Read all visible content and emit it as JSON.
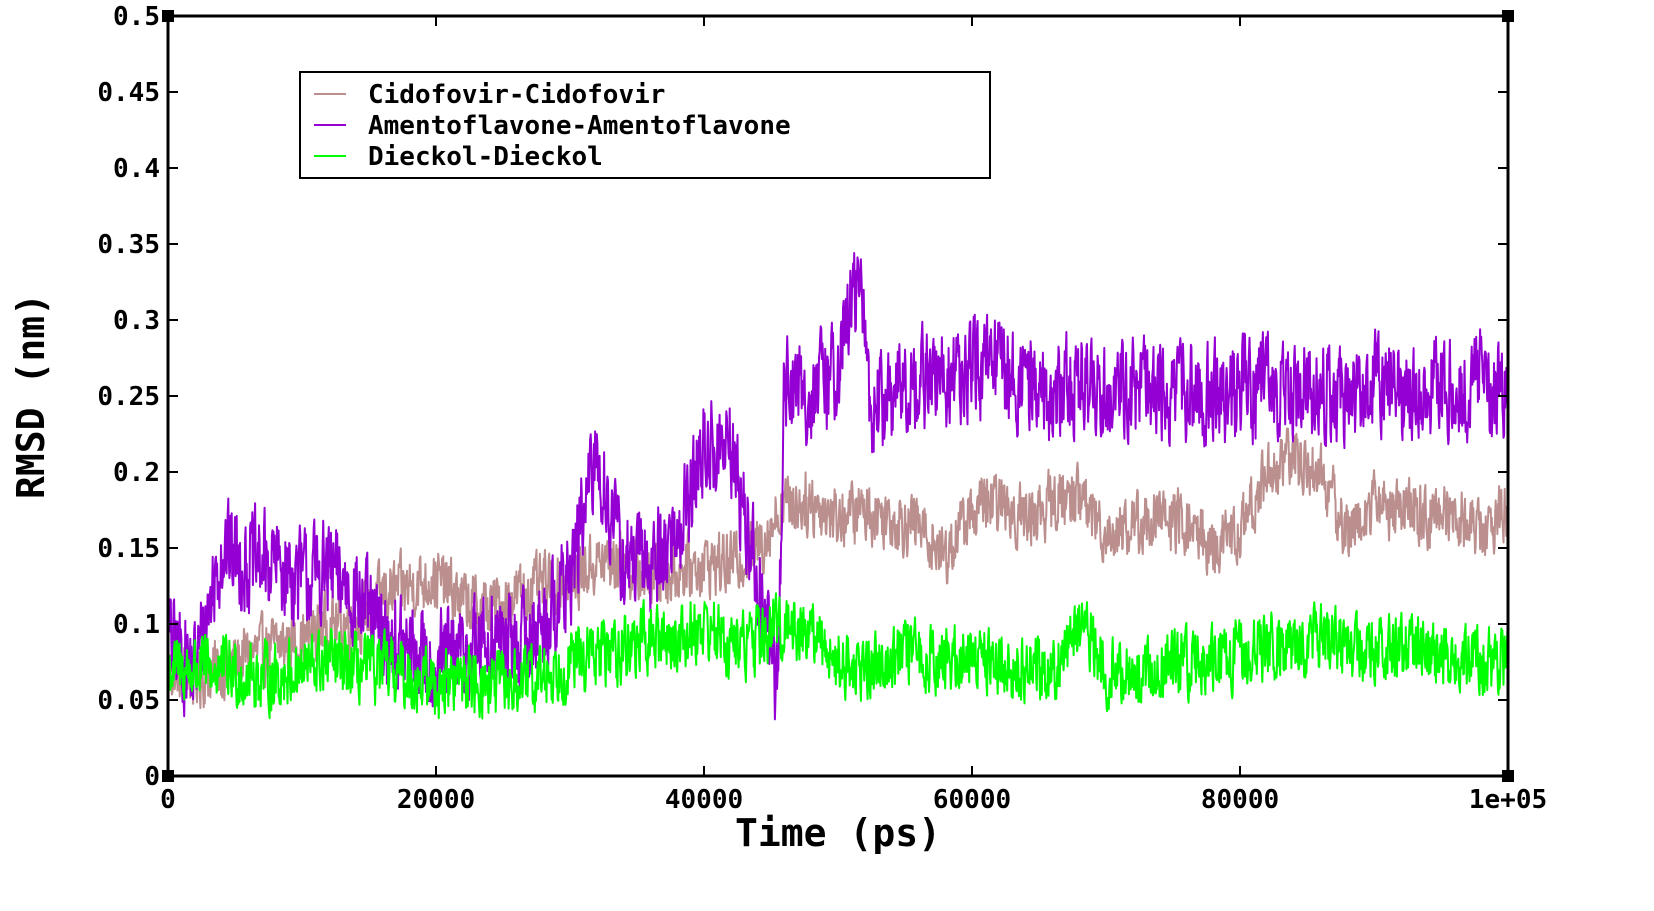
{
  "chart_data": {
    "type": "line",
    "xlabel": "Time (ps)",
    "ylabel": "RMSD (nm)",
    "xlim": [
      0,
      100000
    ],
    "ylim": [
      0,
      0.5
    ],
    "x_ticks": [
      0,
      20000,
      40000,
      60000,
      80000,
      100000
    ],
    "x_tick_labels": [
      "0",
      "20000",
      "40000",
      "60000",
      "80000",
      "1e+05"
    ],
    "y_ticks": [
      0,
      0.05,
      0.1,
      0.15,
      0.2,
      0.25,
      0.3,
      0.35,
      0.4,
      0.45,
      0.5
    ],
    "y_tick_labels": [
      "0",
      "0.05",
      "0.1",
      "0.15",
      "0.2",
      "0.25",
      "0.3",
      "0.35",
      "0.4",
      "0.45",
      "0.5"
    ],
    "grid": false,
    "legend_position": "top-left",
    "series": [
      {
        "name": "Cidofovir-Cidofovir",
        "color": "#bc8f8f",
        "x": [
          0,
          2000,
          4000,
          6000,
          8000,
          10000,
          12000,
          14000,
          16000,
          18000,
          20000,
          22000,
          24000,
          26000,
          28000,
          30000,
          32000,
          34000,
          36000,
          38000,
          40000,
          42000,
          44000,
          46000,
          48000,
          50000,
          52000,
          54000,
          56000,
          58000,
          60000,
          62000,
          64000,
          66000,
          68000,
          70000,
          72000,
          74000,
          76000,
          78000,
          80000,
          82000,
          84000,
          86000,
          88000,
          90000,
          92000,
          94000,
          96000,
          98000,
          100000
        ],
        "y": [
          0.07,
          0.065,
          0.07,
          0.08,
          0.085,
          0.09,
          0.1,
          0.1,
          0.12,
          0.125,
          0.13,
          0.115,
          0.11,
          0.12,
          0.125,
          0.13,
          0.14,
          0.14,
          0.13,
          0.135,
          0.14,
          0.14,
          0.15,
          0.18,
          0.18,
          0.17,
          0.175,
          0.17,
          0.165,
          0.145,
          0.175,
          0.18,
          0.17,
          0.18,
          0.185,
          0.16,
          0.165,
          0.17,
          0.165,
          0.15,
          0.16,
          0.2,
          0.21,
          0.2,
          0.16,
          0.18,
          0.175,
          0.17,
          0.175,
          0.16,
          0.175
        ]
      },
      {
        "name": "Amentoflavone-Amentoflavone",
        "color": "#9400d3",
        "x": [
          0,
          2000,
          4000,
          6000,
          8000,
          10000,
          12000,
          14000,
          16000,
          18000,
          20000,
          22000,
          24000,
          26000,
          28000,
          30000,
          32000,
          34000,
          36000,
          38000,
          40000,
          42000,
          44000,
          45500,
          46000,
          48000,
          50000,
          51500,
          52500,
          54000,
          56000,
          58000,
          60000,
          62000,
          64000,
          66000,
          68000,
          70000,
          72000,
          74000,
          76000,
          78000,
          80000,
          82000,
          84000,
          86000,
          88000,
          90000,
          92000,
          94000,
          96000,
          98000,
          100000
        ],
        "y": [
          0.09,
          0.07,
          0.15,
          0.14,
          0.14,
          0.13,
          0.135,
          0.12,
          0.09,
          0.08,
          0.075,
          0.08,
          0.09,
          0.085,
          0.1,
          0.13,
          0.21,
          0.14,
          0.14,
          0.16,
          0.215,
          0.215,
          0.13,
          0.06,
          0.26,
          0.25,
          0.27,
          0.33,
          0.24,
          0.25,
          0.26,
          0.26,
          0.265,
          0.27,
          0.26,
          0.25,
          0.26,
          0.255,
          0.255,
          0.25,
          0.255,
          0.25,
          0.255,
          0.255,
          0.25,
          0.255,
          0.25,
          0.26,
          0.25,
          0.255,
          0.255,
          0.26,
          0.25
        ]
      },
      {
        "name": "Dieckol-Dieckol",
        "color": "#00ff00",
        "x": [
          0,
          2000,
          4000,
          6000,
          8000,
          10000,
          12000,
          14000,
          16000,
          18000,
          20000,
          22000,
          24000,
          26000,
          28000,
          30000,
          32000,
          34000,
          36000,
          38000,
          40000,
          42000,
          44000,
          46000,
          48000,
          50000,
          52000,
          54000,
          56000,
          58000,
          60000,
          62000,
          64000,
          66000,
          68000,
          70000,
          72000,
          74000,
          76000,
          78000,
          80000,
          82000,
          84000,
          86000,
          88000,
          90000,
          92000,
          94000,
          96000,
          98000,
          100000
        ],
        "y": [
          0.07,
          0.07,
          0.07,
          0.065,
          0.065,
          0.07,
          0.075,
          0.07,
          0.07,
          0.065,
          0.06,
          0.065,
          0.06,
          0.06,
          0.065,
          0.075,
          0.08,
          0.085,
          0.09,
          0.09,
          0.1,
          0.085,
          0.09,
          0.1,
          0.095,
          0.075,
          0.07,
          0.08,
          0.08,
          0.075,
          0.08,
          0.075,
          0.07,
          0.07,
          0.1,
          0.07,
          0.065,
          0.07,
          0.075,
          0.075,
          0.08,
          0.085,
          0.085,
          0.09,
          0.085,
          0.08,
          0.085,
          0.08,
          0.08,
          0.075,
          0.075
        ]
      }
    ]
  }
}
